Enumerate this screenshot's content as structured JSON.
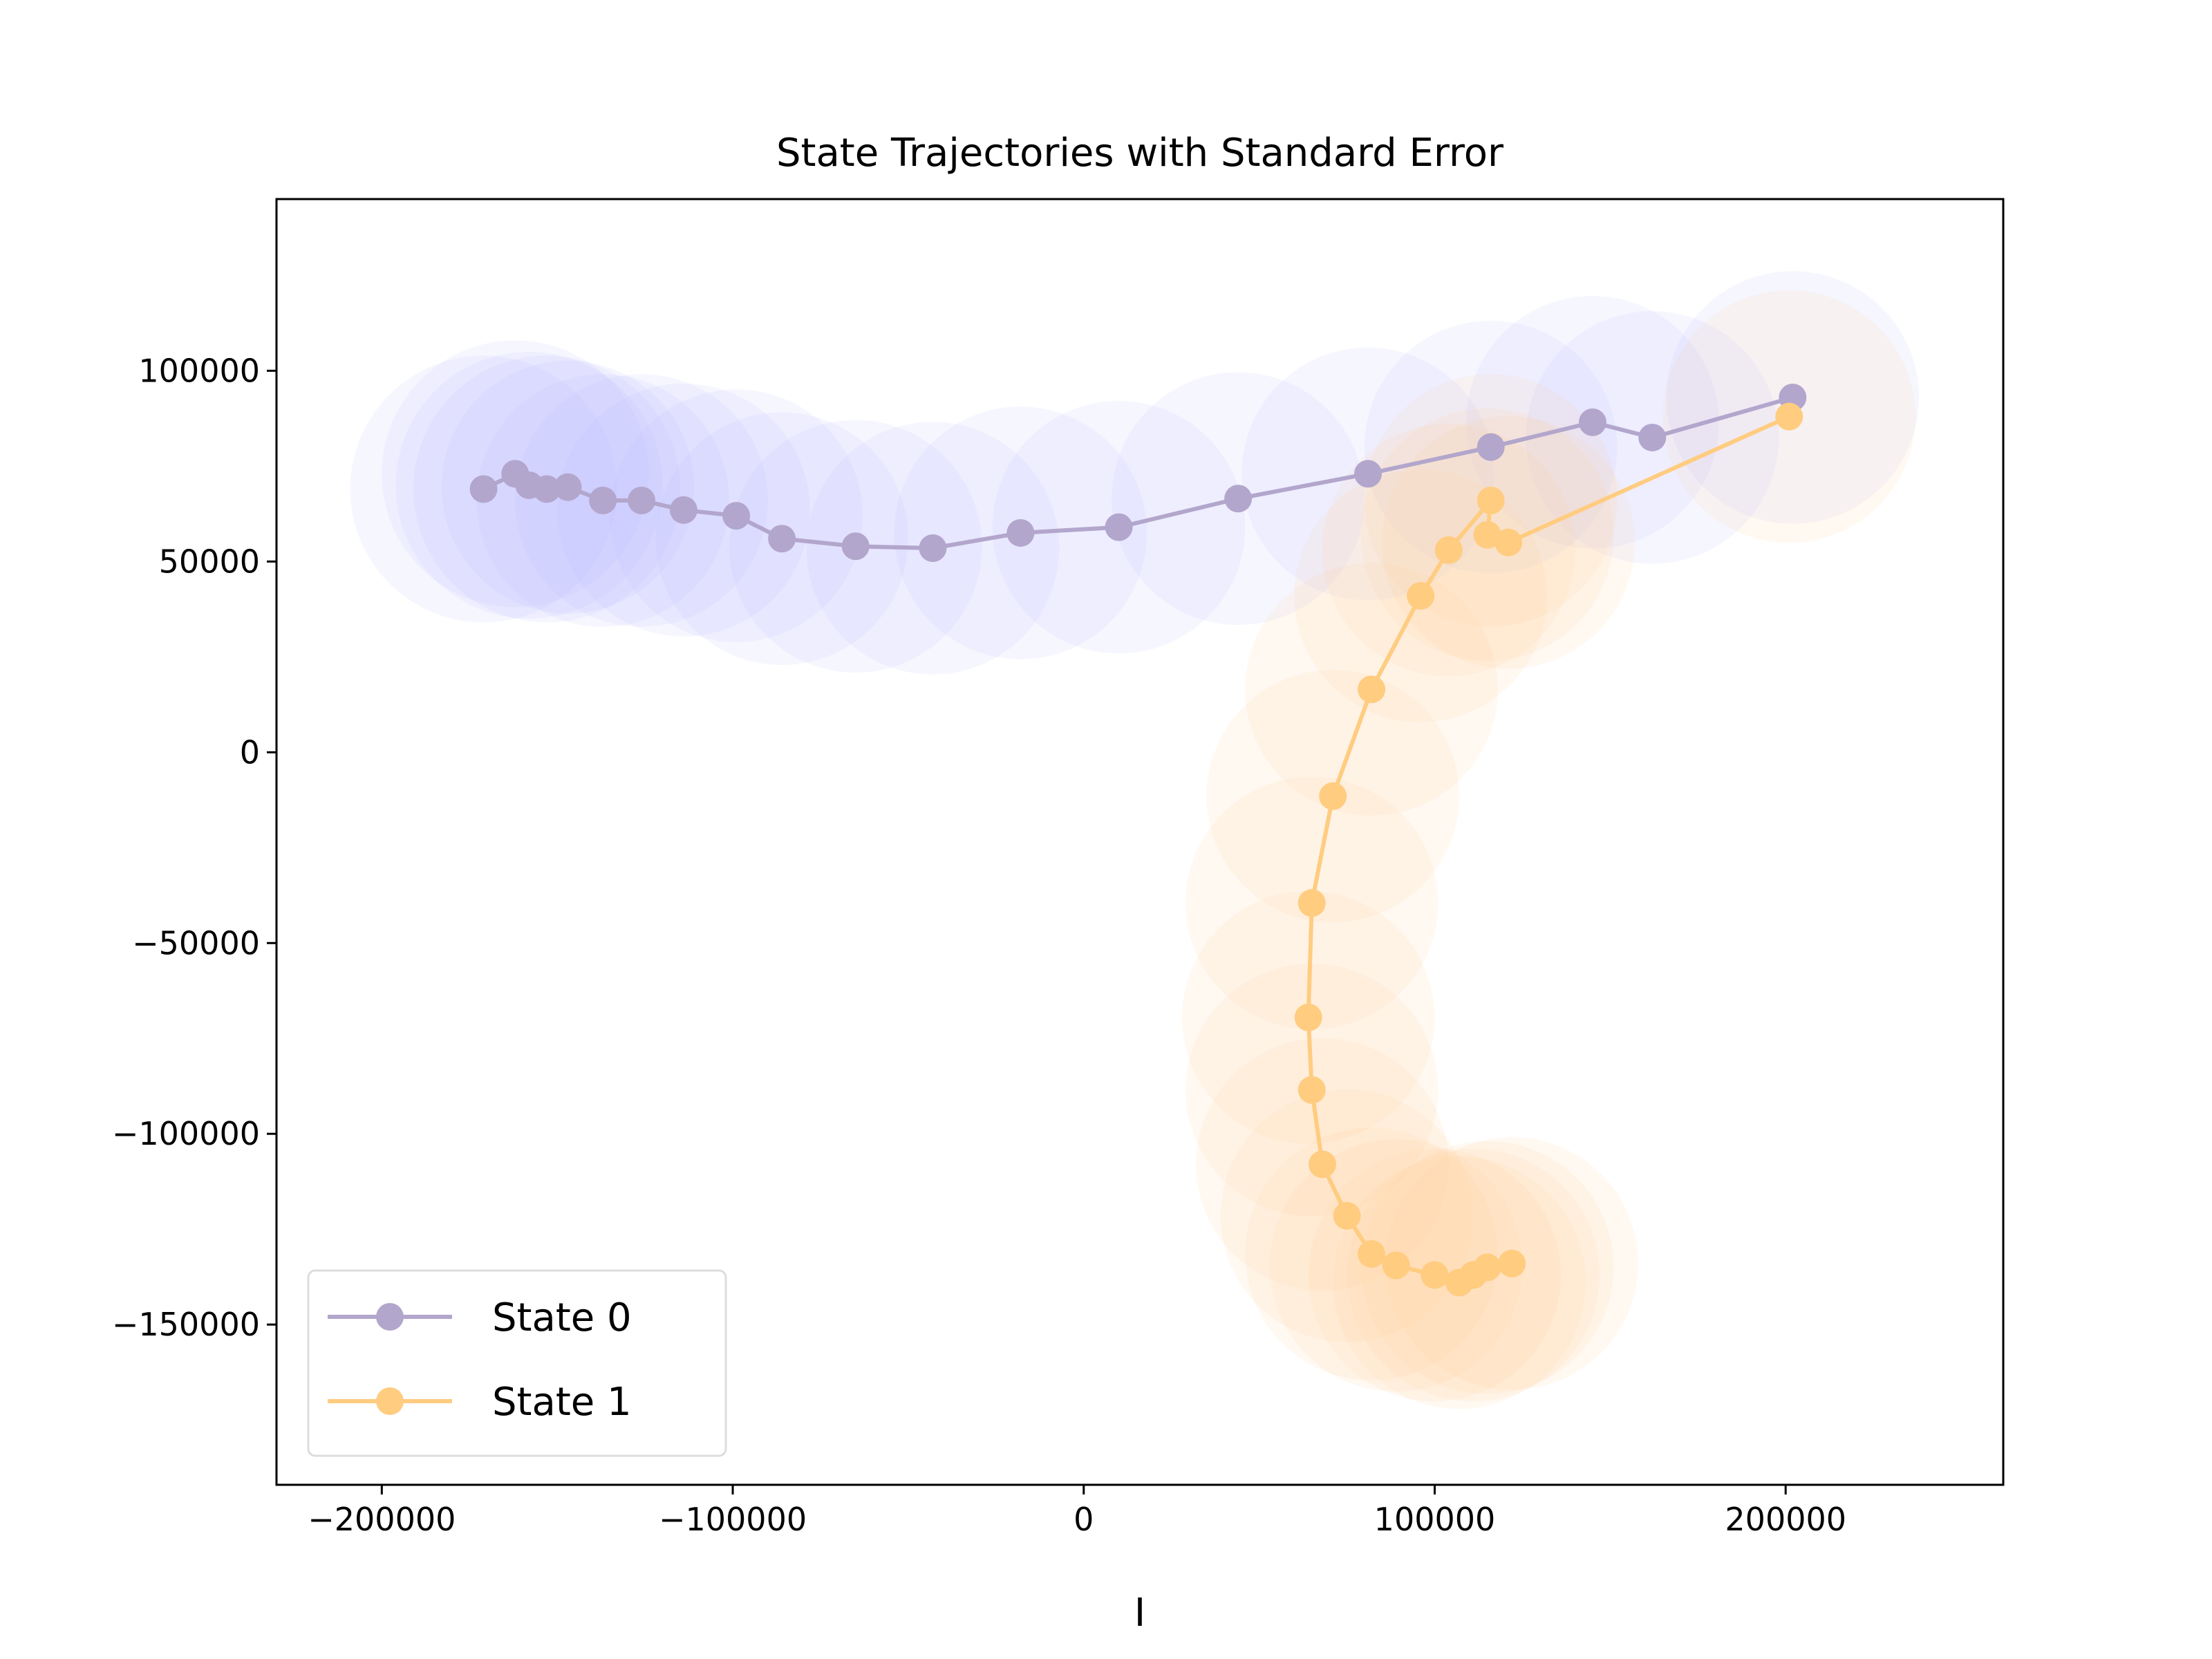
{
  "chart_data": {
    "type": "scatter",
    "title": "State Trajectories with Standard Error",
    "xlabel": "I",
    "ylabel": "",
    "xlim": [
      -230000,
      262000
    ],
    "ylim": [
      -192000,
      145000
    ],
    "xticks": [
      -200000,
      -100000,
      0,
      100000,
      200000
    ],
    "xtick_labels": [
      "−200000",
      "−100000",
      "0",
      "100000",
      "200000"
    ],
    "yticks": [
      100000,
      50000,
      0,
      -50000,
      -100000,
      -150000
    ],
    "ytick_labels": [
      "100000",
      "50000",
      "0",
      "−50000",
      "−100000",
      "−150000"
    ],
    "grid": false,
    "legend_position": "lower-left",
    "series": [
      {
        "name": "State 0",
        "color": "#b3a6cc",
        "error_color": "#bbbbff",
        "x": [
          -171000,
          -162000,
          -158000,
          -153000,
          -147000,
          -137000,
          -126000,
          -114000,
          -99000,
          -86000,
          -65000,
          -43000,
          -18000,
          10000,
          44000,
          81000,
          116000,
          145000,
          162000,
          202000
        ],
        "y": [
          69000,
          73000,
          70000,
          69000,
          69500,
          66000,
          66000,
          63500,
          62000,
          56000,
          54000,
          53500,
          57500,
          59000,
          66500,
          73000,
          80000,
          86500,
          82500,
          93000
        ],
        "se": [
          38000,
          38000,
          38000,
          38000,
          36000,
          36000,
          36000,
          36000,
          36000,
          36000,
          36000,
          36000,
          36000,
          36000,
          36000,
          36000,
          36000,
          36000,
          36000,
          36000
        ]
      },
      {
        "name": "State 1",
        "color": "#ffcc80",
        "error_color": "#ffd39b",
        "x": [
          201000,
          121000,
          115000,
          116000,
          104000,
          96000,
          82000,
          71000,
          65000,
          64000,
          65000,
          68000,
          75000,
          82000,
          89000,
          100000,
          107000,
          111000,
          115000,
          122000
        ],
        "y": [
          88000,
          55000,
          57000,
          66000,
          53000,
          41000,
          16500,
          -11500,
          -39500,
          -69500,
          -88500,
          -108000,
          -121500,
          -131500,
          -134500,
          -137000,
          -139000,
          -137000,
          -135000,
          -134000
        ],
        "se": [
          36000,
          36000,
          36000,
          36000,
          36000,
          36000,
          36000,
          36000,
          36000,
          36000,
          36000,
          36000,
          36000,
          36000,
          36000,
          36000,
          36000,
          36000,
          36000,
          36000
        ]
      }
    ]
  }
}
